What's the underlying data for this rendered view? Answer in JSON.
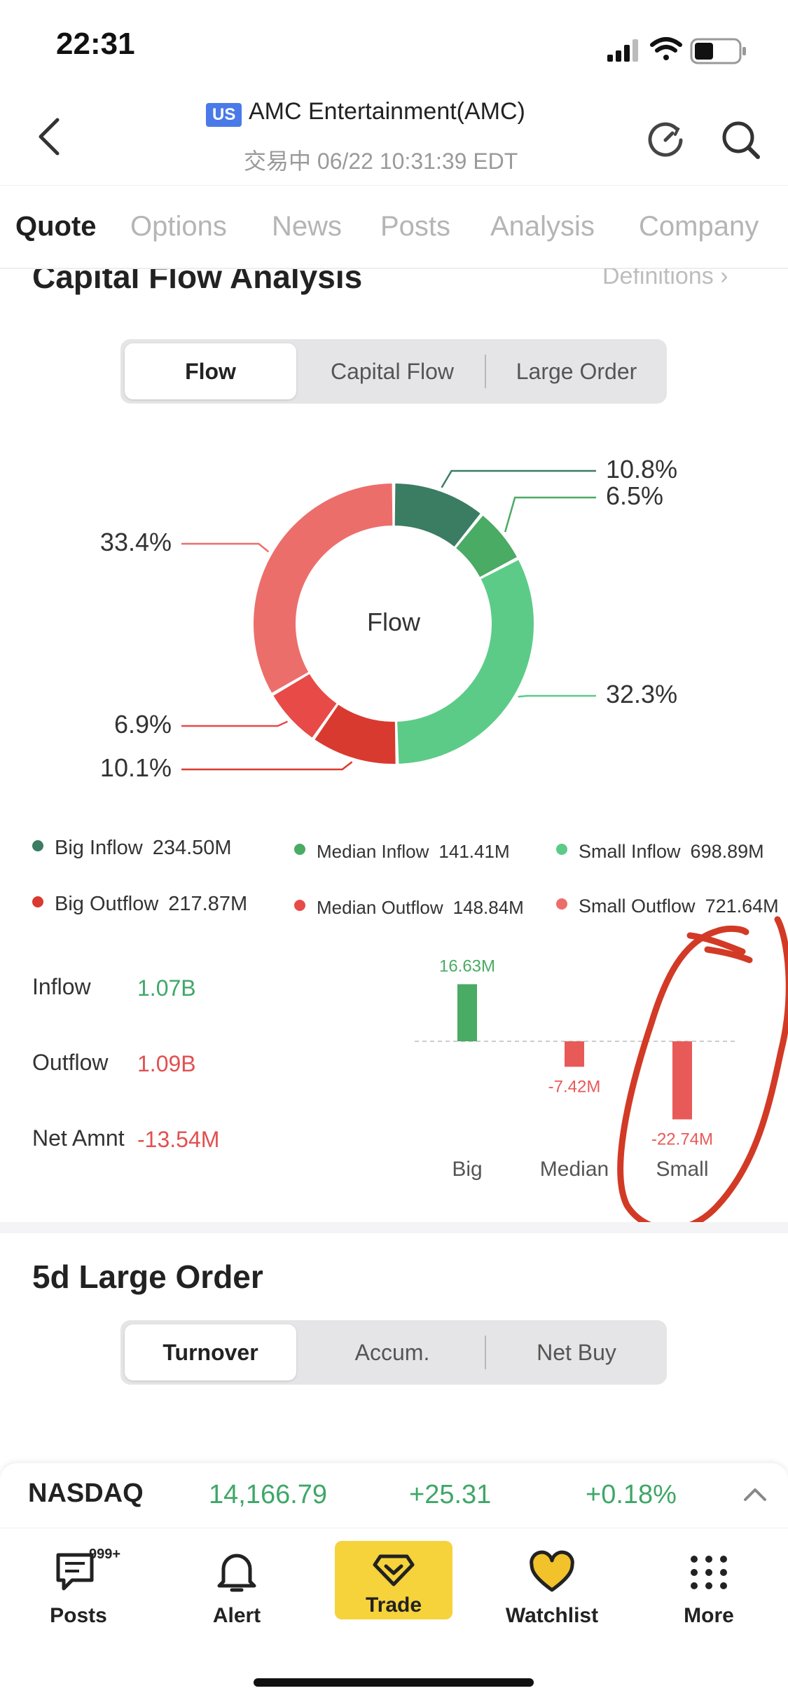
{
  "status_bar": {
    "time": "22:31"
  },
  "header": {
    "market_badge": "US",
    "title": "AMC Entertainment(AMC)",
    "subtitle": "交易中 06/22 10:31:39 EDT"
  },
  "tabs": [
    {
      "label": "Quote",
      "active": true
    },
    {
      "label": "Options",
      "active": false
    },
    {
      "label": "News",
      "active": false
    },
    {
      "label": "Posts",
      "active": false
    },
    {
      "label": "Analysis",
      "active": false
    },
    {
      "label": "Company",
      "active": false
    }
  ],
  "capital_flow": {
    "title": "Capital Flow Analysis",
    "definitions_label": "Definitions",
    "segments": [
      {
        "label": "Flow",
        "active": true
      },
      {
        "label": "Capital Flow",
        "active": false
      },
      {
        "label": "Large  Order",
        "active": false
      }
    ],
    "donut_center": "Flow"
  },
  "chart_data": [
    {
      "type": "pie",
      "center_label": "Flow",
      "slices": [
        {
          "name": "Big Inflow",
          "percent": 10.8,
          "label": "10.8%",
          "color": "#3b7d62"
        },
        {
          "name": "Median Inflow",
          "percent": 6.5,
          "label": "6.5%",
          "color": "#4aab64"
        },
        {
          "name": "Small Inflow",
          "percent": 32.3,
          "label": "32.3%",
          "color": "#5ccb88"
        },
        {
          "name": "Big Outflow",
          "percent": 10.1,
          "label": "10.1%",
          "color": "#d93a2f"
        },
        {
          "name": "Median Outflow",
          "percent": 6.9,
          "label": "6.9%",
          "color": "#e84a48"
        },
        {
          "name": "Small Outflow",
          "percent": 33.4,
          "label": "33.4%",
          "color": "#ec6e6b"
        }
      ]
    },
    {
      "type": "bar",
      "categories": [
        "Big",
        "Median",
        "Small"
      ],
      "values": [
        16.63,
        -7.42,
        -22.74
      ],
      "value_labels": [
        "16.63M",
        "-7.42M",
        "-22.74M"
      ],
      "colors": [
        "#4aab64",
        "#e85a58",
        "#e85a58"
      ]
    }
  ],
  "legend": [
    {
      "name": "Big Inflow",
      "value": "234.50M",
      "color": "#3b7d62"
    },
    {
      "name": "Median Inflow",
      "value": "141.41M",
      "color": "#4aab64"
    },
    {
      "name": "Small Inflow",
      "value": "698.89M",
      "color": "#5ccb88"
    },
    {
      "name": "Big Outflow",
      "value": "217.87M",
      "color": "#d93a2f"
    },
    {
      "name": "Median Outflow",
      "value": "148.84M",
      "color": "#e84a48"
    },
    {
      "name": "Small Outflow",
      "value": "721.64M",
      "color": "#ec6e6b"
    }
  ],
  "summary": {
    "inflow_label": "Inflow",
    "inflow_value": "1.07B",
    "outflow_label": "Outflow",
    "outflow_value": "1.09B",
    "net_label": "Net Amnt",
    "net_value": "-13.54M"
  },
  "large_order": {
    "title": "5d Large Order",
    "segments": [
      {
        "label": "Turnover",
        "active": true
      },
      {
        "label": "Accum.",
        "active": false
      },
      {
        "label": "Net Buy",
        "active": false
      }
    ]
  },
  "ticker": {
    "name": "NASDAQ",
    "price": "14,166.79",
    "change": "+25.31",
    "percent": "+0.18%"
  },
  "bottom_nav": [
    {
      "label": "Posts",
      "icon": "posts-icon",
      "badge": "999+"
    },
    {
      "label": "Alert",
      "icon": "bell-icon"
    },
    {
      "label": "Trade",
      "icon": "trade-icon"
    },
    {
      "label": "Watchlist",
      "icon": "heart-icon"
    },
    {
      "label": "More",
      "icon": "grid-icon"
    }
  ],
  "colors": {
    "accent_green": "#3fa768",
    "accent_red": "#e25050",
    "trade_yellow": "#f6d23b"
  }
}
